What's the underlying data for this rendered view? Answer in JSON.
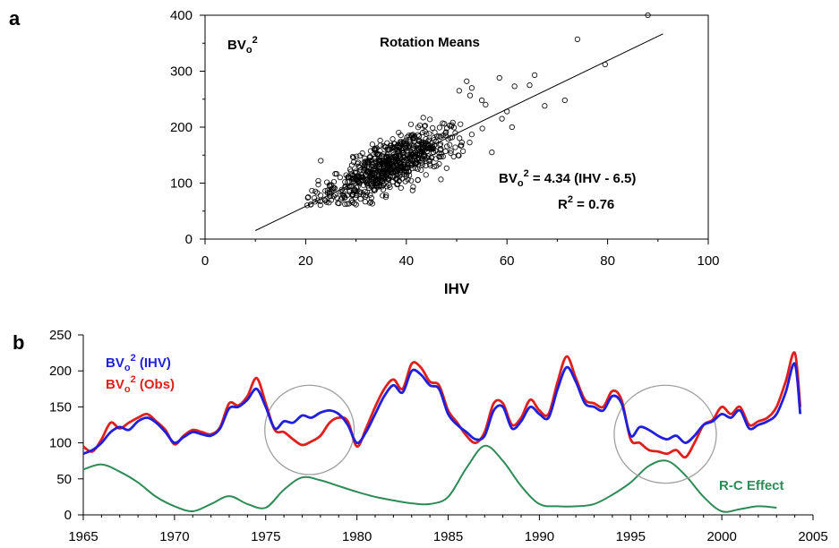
{
  "colors": {
    "ihv": "#1f1fdc",
    "obs": "#e0201c",
    "rc": "#2e8b57",
    "ellipse": "#a0a0a0",
    "axis": "#000000"
  },
  "chart_data": [
    {
      "type": "scatter",
      "panel_label": "a",
      "title": "Rotation Means",
      "corner_label": {
        "base": "BV",
        "sub": "o",
        "sup": "2"
      },
      "xlabel": "IHV",
      "ylabel": "",
      "xlim": [
        0,
        100
      ],
      "ylim": [
        0,
        400
      ],
      "xticks": [
        "0",
        "20",
        "40",
        "60",
        "80",
        "100"
      ],
      "yticks": [
        "0",
        "100",
        "200",
        "300",
        "400"
      ],
      "grid": false,
      "fit": {
        "equation_rhs": " = 4.34 (IHV - 6.5)",
        "r2_rhs": " = 0.76",
        "slope": 4.34,
        "intercept_x": 6.5,
        "x_range": [
          10,
          91
        ],
        "r_squared": 0.76
      },
      "outliers": [
        [
          88,
          400
        ],
        [
          74,
          357
        ],
        [
          79.5,
          312
        ],
        [
          71.5,
          248
        ],
        [
          67.5,
          238
        ],
        [
          65.5,
          293
        ],
        [
          64.5,
          275
        ],
        [
          61.5,
          273
        ],
        [
          58.5,
          288
        ],
        [
          57,
          155
        ],
        [
          52,
          282
        ],
        [
          50.5,
          265
        ],
        [
          53,
          270
        ],
        [
          55,
          248
        ],
        [
          60,
          228
        ],
        [
          61,
          200
        ],
        [
          59,
          215
        ],
        [
          23,
          140
        ],
        [
          20.5,
          75
        ],
        [
          21,
          62
        ]
      ],
      "cloud": {
        "n": 720,
        "x_center": 37,
        "x_spread": 6.5,
        "residual_sd": 22
      }
    },
    {
      "type": "line",
      "panel_label": "b",
      "xlim": [
        1965,
        2005
      ],
      "ylim": [
        0,
        250
      ],
      "xticks": [
        "1965",
        "1970",
        "1975",
        "1980",
        "1985",
        "1990",
        "1995",
        "2000",
        "2005"
      ],
      "yticks": [
        "0",
        "50",
        "100",
        "150",
        "200",
        "250"
      ],
      "grid": false,
      "legend_placement": "top-left",
      "series": [
        {
          "name": "BVo2 (IHV)",
          "legend": {
            "base": "BV",
            "sub": "o",
            "sup": "2",
            "rest": " (IHV)"
          },
          "color_key": "ihv",
          "x": [
            1965,
            1965.5,
            1966,
            1966.5,
            1967,
            1967.5,
            1968,
            1968.5,
            1969,
            1969.5,
            1970,
            1970.5,
            1971,
            1971.5,
            1972,
            1972.5,
            1973,
            1973.5,
            1974,
            1974.5,
            1975,
            1975.5,
            1976,
            1976.5,
            1977,
            1977.5,
            1978,
            1978.5,
            1979,
            1979.5,
            1980,
            1980.5,
            1981,
            1981.5,
            1982,
            1982.5,
            1983,
            1983.5,
            1984,
            1984.5,
            1985,
            1985.5,
            1986,
            1986.5,
            1987,
            1987.5,
            1988,
            1988.5,
            1989,
            1989.5,
            1990,
            1990.5,
            1991,
            1991.5,
            1992,
            1992.5,
            1993,
            1993.5,
            1994,
            1994.5,
            1995,
            1995.5,
            1996,
            1996.5,
            1997,
            1997.5,
            1998,
            1998.5,
            1999,
            1999.5,
            2000,
            2000.5,
            2001,
            2001.5,
            2002,
            2002.5,
            2003,
            2003.5,
            2004,
            2004.3
          ],
          "values": [
            85,
            90,
            100,
            115,
            122,
            118,
            130,
            135,
            128,
            115,
            100,
            108,
            115,
            112,
            110,
            120,
            148,
            150,
            160,
            175,
            150,
            120,
            130,
            128,
            138,
            135,
            142,
            145,
            140,
            125,
            100,
            115,
            140,
            165,
            180,
            170,
            200,
            195,
            180,
            175,
            140,
            125,
            115,
            105,
            110,
            145,
            150,
            120,
            130,
            150,
            140,
            135,
            175,
            205,
            185,
            155,
            150,
            145,
            165,
            155,
            110,
            122,
            118,
            110,
            105,
            110,
            100,
            110,
            125,
            130,
            140,
            135,
            145,
            120,
            125,
            130,
            140,
            170,
            210,
            140
          ]
        },
        {
          "name": "BVo2 (Obs)",
          "legend": {
            "base": "BV",
            "sub": "o",
            "sup": "2",
            "rest": " (Obs)"
          },
          "color_key": "obs",
          "x": [
            1965,
            1965.5,
            1966,
            1966.5,
            1967,
            1967.5,
            1968,
            1968.5,
            1969,
            1969.5,
            1970,
            1970.5,
            1971,
            1971.5,
            1972,
            1972.5,
            1973,
            1973.5,
            1974,
            1974.5,
            1975,
            1975.5,
            1976,
            1976.5,
            1977,
            1977.5,
            1978,
            1978.5,
            1979,
            1979.5,
            1980,
            1980.5,
            1981,
            1981.5,
            1982,
            1982.5,
            1983,
            1983.5,
            1984,
            1984.5,
            1985,
            1985.5,
            1986,
            1986.5,
            1987,
            1987.5,
            1988,
            1988.5,
            1989,
            1989.5,
            1990,
            1990.5,
            1991,
            1991.5,
            1992,
            1992.5,
            1993,
            1993.5,
            1994,
            1994.5,
            1995,
            1995.5,
            1996,
            1996.5,
            1997,
            1997.5,
            1998,
            1998.5,
            1999,
            1999.5,
            2000,
            2000.5,
            2001,
            2001.5,
            2002,
            2002.5,
            2003,
            2003.5,
            2004,
            2004.3
          ],
          "values": [
            95,
            88,
            105,
            128,
            120,
            128,
            135,
            140,
            130,
            118,
            98,
            110,
            118,
            115,
            112,
            122,
            155,
            152,
            165,
            190,
            155,
            118,
            115,
            105,
            97,
            102,
            110,
            128,
            135,
            130,
            95,
            120,
            150,
            175,
            188,
            175,
            210,
            205,
            185,
            180,
            145,
            128,
            110,
            100,
            115,
            155,
            155,
            125,
            135,
            160,
            145,
            140,
            185,
            220,
            190,
            160,
            155,
            150,
            172,
            160,
            105,
            100,
            90,
            88,
            85,
            90,
            80,
            100,
            125,
            132,
            150,
            140,
            150,
            125,
            130,
            135,
            150,
            185,
            225,
            150
          ]
        },
        {
          "name": "R-C Effect",
          "color_key": "rc",
          "label": "R-C Effect",
          "x": [
            1965,
            1966,
            1967,
            1968,
            1969,
            1970,
            1971,
            1972,
            1973,
            1974,
            1975,
            1976,
            1977,
            1978,
            1979,
            1980,
            1981,
            1982,
            1983,
            1984,
            1985,
            1986,
            1987,
            1988,
            1989,
            1990,
            1991,
            1992,
            1993,
            1994,
            1995,
            1996,
            1997,
            1998,
            1999,
            2000,
            2001,
            2002,
            2003
          ],
          "values": [
            63,
            70,
            60,
            45,
            25,
            12,
            5,
            15,
            26,
            15,
            10,
            35,
            52,
            48,
            40,
            32,
            25,
            20,
            16,
            15,
            25,
            65,
            96,
            75,
            40,
            15,
            12,
            12,
            15,
            28,
            45,
            68,
            75,
            55,
            25,
            5,
            8,
            12,
            10
          ]
        }
      ],
      "ellipses": [
        {
          "cx": 1977.4,
          "cy": 118,
          "rx": 2.45,
          "ry": 62
        },
        {
          "cx": 1996.9,
          "cy": 112,
          "rx": 2.8,
          "ry": 68
        }
      ]
    }
  ]
}
